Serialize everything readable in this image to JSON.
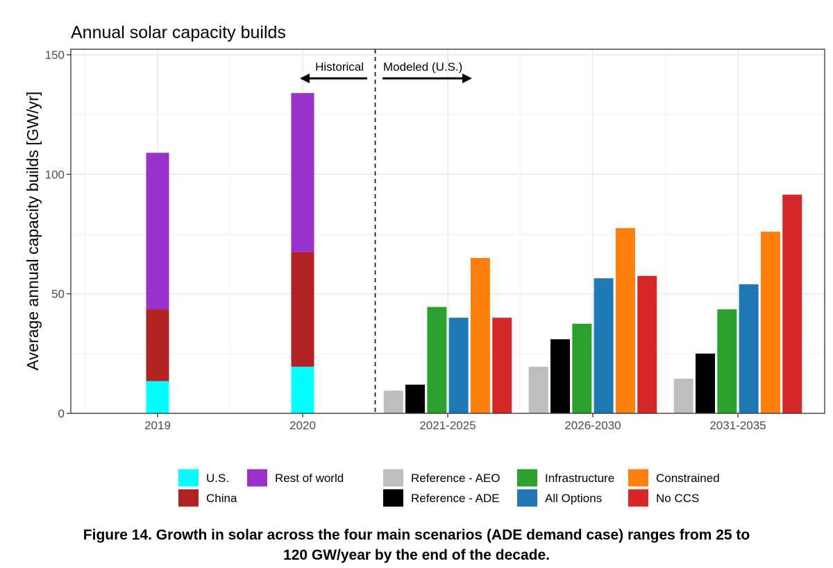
{
  "chart_data": {
    "type": "bar",
    "title": "Annual solar capacity builds",
    "ylabel": "Average annual capacity builds [GW/yr]",
    "xlabel": "",
    "ylim": [
      0,
      150
    ],
    "yticks": [
      0,
      50,
      100,
      150
    ],
    "categories": [
      "2019",
      "2020",
      "2021-2025",
      "2026-2030",
      "2031-2035"
    ],
    "historical": {
      "categories": [
        "2019",
        "2020"
      ],
      "stack": [
        {
          "name": "U.S.",
          "color": "#00FFFF",
          "values": [
            13.5,
            19.5
          ]
        },
        {
          "name": "China",
          "color": "#B22222",
          "values": [
            30,
            48
          ]
        },
        {
          "name": "Rest of world",
          "color": "#9932CC",
          "values": [
            65.5,
            66.5
          ]
        }
      ]
    },
    "modeled": {
      "categories": [
        "2021-2025",
        "2026-2030",
        "2031-2035"
      ],
      "series": [
        {
          "name": "Reference - AEO",
          "color": "#BEBEBE",
          "values": [
            9.5,
            19.5,
            14.5
          ]
        },
        {
          "name": "Reference - ADE",
          "color": "#000000",
          "values": [
            12,
            31,
            25
          ]
        },
        {
          "name": "Infrastructure",
          "color": "#2CA02C",
          "values": [
            44.5,
            37.5,
            43.5
          ]
        },
        {
          "name": "All Options",
          "color": "#1F77B4",
          "values": [
            40,
            56.5,
            54
          ]
        },
        {
          "name": "Constrained",
          "color": "#FF7F0E",
          "values": [
            65,
            77.5,
            76
          ]
        },
        {
          "name": "No CCS",
          "color": "#D62728",
          "values": [
            40,
            57.5,
            91.5
          ]
        }
      ]
    },
    "annotations": {
      "historical_label": "Historical",
      "modeled_label": "Modeled (U.S.)"
    },
    "legend_layout": [
      [
        "U.S.",
        "Rest of world",
        "Reference - AEO",
        "Infrastructure",
        "Constrained"
      ],
      [
        "China",
        "",
        "Reference - ADE",
        "All Options",
        "No CCS"
      ]
    ]
  },
  "caption": {
    "line1": "Figure 14. Growth in solar across the four main scenarios (ADE demand case) ranges from 25 to",
    "line2": "120 GW/year by the end of the decade."
  }
}
